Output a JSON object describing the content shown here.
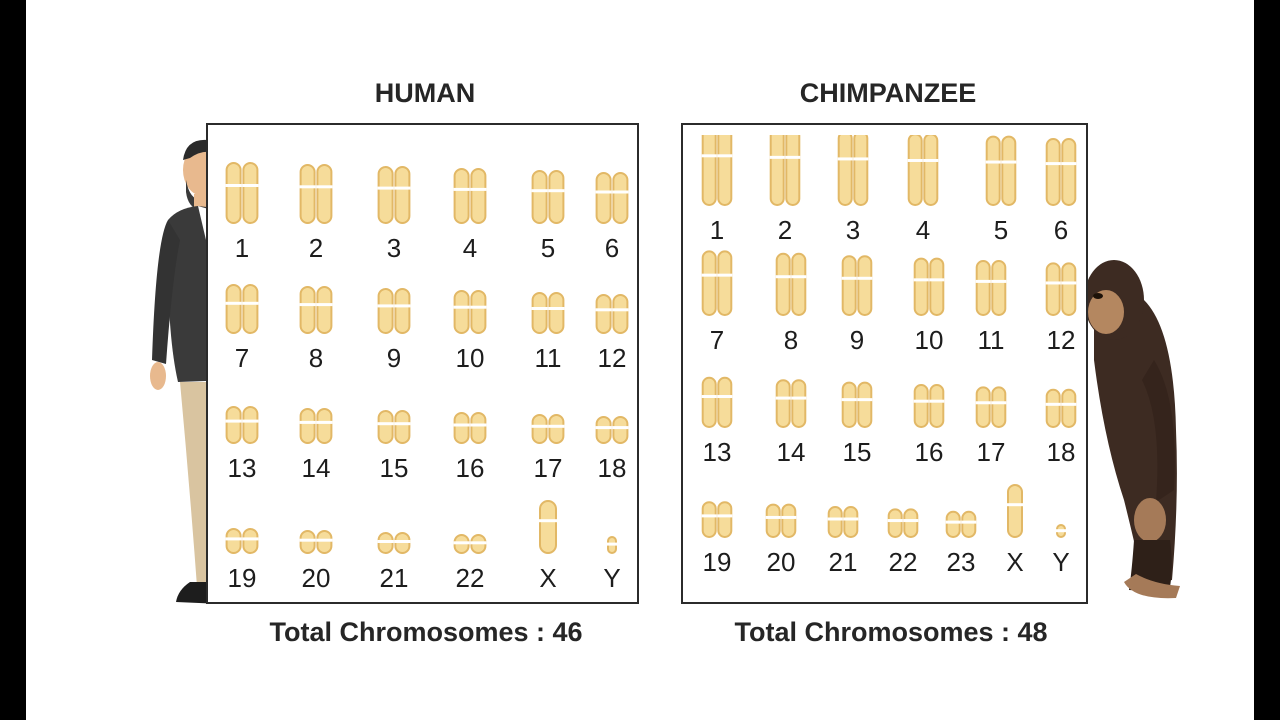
{
  "human": {
    "title": "HUMAN",
    "total": "Total Chromosomes : 46",
    "rows": [
      [
        "1",
        "2",
        "3",
        "4",
        "5",
        "6"
      ],
      [
        "7",
        "8",
        "9",
        "10",
        "11",
        "12"
      ],
      [
        "13",
        "14",
        "15",
        "16",
        "17",
        "18"
      ],
      [
        "19",
        "20",
        "21",
        "22",
        "X",
        "Y"
      ]
    ]
  },
  "chimp": {
    "title": "CHIMPANZEE",
    "total": "Total Chromosomes : 48",
    "rows": [
      [
        "1",
        "2",
        "3",
        "4",
        "5",
        "6"
      ],
      [
        "7",
        "8",
        "9",
        "10",
        "11",
        "12"
      ],
      [
        "13",
        "14",
        "15",
        "16",
        "17",
        "18"
      ],
      [
        "19",
        "20",
        "21",
        "22",
        "23",
        "X",
        "Y"
      ]
    ]
  },
  "colors": {
    "chromosome_fill": "#f6dc9a",
    "chromosome_stroke": "#e2b866",
    "text": "#262626"
  },
  "icons": {
    "human_figure": "man-in-suit-illustration",
    "chimp_figure": "chimpanzee-illustration"
  }
}
